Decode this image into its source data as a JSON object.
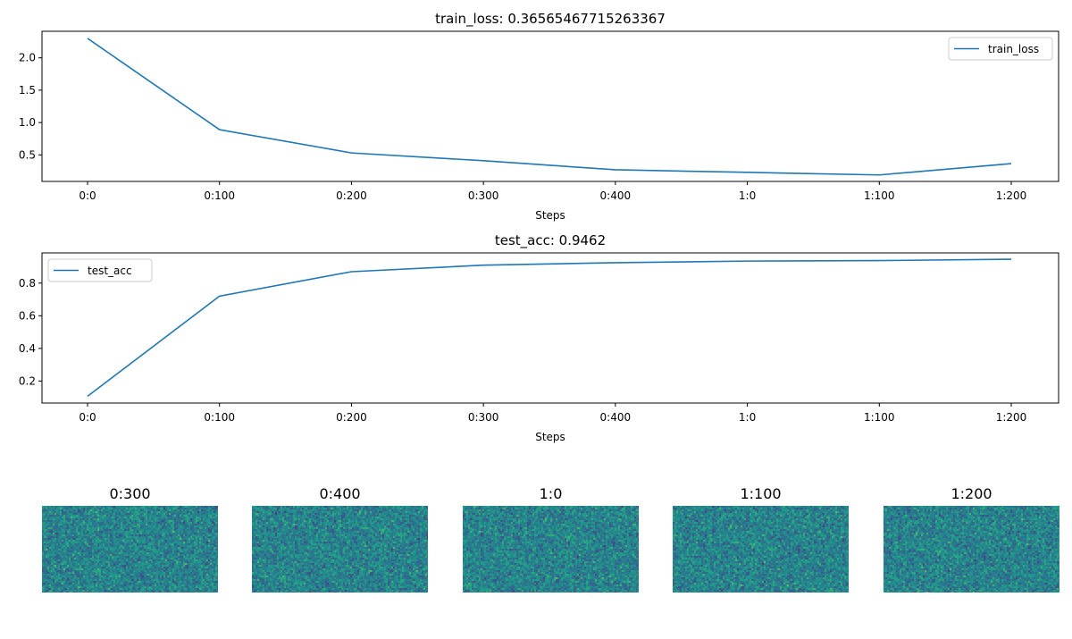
{
  "chart_data": [
    {
      "type": "line",
      "title": "train_loss: 0.36565467715263367",
      "xlabel": "Steps",
      "ylabel": "",
      "categories": [
        "0:0",
        "0:100",
        "0:200",
        "0:300",
        "0:400",
        "1:0",
        "1:100",
        "1:200"
      ],
      "series": [
        {
          "name": "train_loss",
          "values": [
            2.3,
            0.89,
            0.53,
            0.41,
            0.27,
            0.23,
            0.19,
            0.3657
          ],
          "color": "#1f77b4"
        }
      ],
      "yticks": [
        0.5,
        1.0,
        1.5,
        2.0
      ],
      "ytick_labels": [
        "0.5",
        "1.0",
        "1.5",
        "2.0"
      ],
      "ylim": [
        0.09,
        2.41
      ],
      "grid": false,
      "legend": "top-right"
    },
    {
      "type": "line",
      "title": "test_acc: 0.9462",
      "xlabel": "Steps",
      "ylabel": "",
      "categories": [
        "0:0",
        "0:100",
        "0:200",
        "0:300",
        "0:400",
        "1:0",
        "1:100",
        "1:200"
      ],
      "series": [
        {
          "name": "test_acc",
          "values": [
            0.107,
            0.72,
            0.87,
            0.91,
            0.925,
            0.935,
            0.938,
            0.9462
          ],
          "color": "#1f77b4"
        }
      ],
      "yticks": [
        0.2,
        0.4,
        0.6,
        0.8
      ],
      "ytick_labels": [
        "0.2",
        "0.4",
        "0.6",
        "0.8"
      ],
      "ylim": [
        0.065,
        0.985
      ],
      "grid": false,
      "legend": "top-left"
    },
    {
      "type": "heatmap",
      "colormap": "viridis",
      "panels": [
        {
          "title": "0:300"
        },
        {
          "title": "0:400"
        },
        {
          "title": "1:0"
        },
        {
          "title": "1:100"
        },
        {
          "title": "1:200"
        }
      ]
    }
  ]
}
